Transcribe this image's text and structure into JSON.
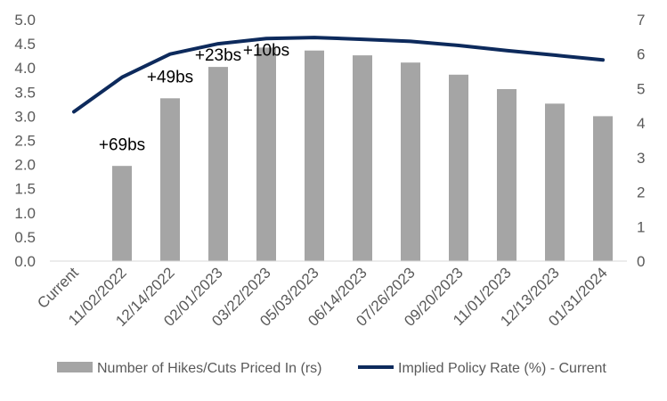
{
  "chart_data": {
    "type": "bar+line",
    "categories": [
      "Current",
      "11/02/2022",
      "12/14/2022",
      "02/01/2023",
      "03/22/2023",
      "05/03/2023",
      "06/14/2023",
      "07/26/2023",
      "09/20/2023",
      "11/01/2023",
      "12/13/2023",
      "01/31/2024"
    ],
    "series": [
      {
        "name": "Number of Hikes/Cuts Priced In (rs)",
        "type": "bar",
        "axis": "left",
        "values": [
          0,
          1.97,
          3.37,
          4.02,
          4.42,
          4.36,
          4.26,
          4.11,
          3.86,
          3.56,
          3.26,
          3.0
        ]
      },
      {
        "name": "Implied Policy Rate (%) - Current",
        "type": "line",
        "axis": "right",
        "values": [
          4.33,
          5.33,
          6.0,
          6.3,
          6.45,
          6.48,
          6.43,
          6.37,
          6.25,
          6.1,
          5.97,
          5.83
        ]
      }
    ],
    "annotations": [
      {
        "text": "+69bs",
        "category": "11/02/2022",
        "value": 2.3
      },
      {
        "text": "+49bs",
        "category": "12/14/2022",
        "value": 3.7
      },
      {
        "text": "+23bs",
        "category": "02/01/2023",
        "value": 4.15
      },
      {
        "text": "+10bs",
        "category": "03/22/2023",
        "value": 4.25
      }
    ],
    "y_left": {
      "min": 0,
      "max": 5,
      "ticks": [
        "0.0",
        "0.5",
        "1.0",
        "1.5",
        "2.0",
        "2.5",
        "3.0",
        "3.5",
        "4.0",
        "4.5",
        "5.0"
      ]
    },
    "y_right": {
      "min": 0,
      "max": 7,
      "ticks": [
        "0",
        "1",
        "2",
        "3",
        "4",
        "5",
        "6",
        "7"
      ]
    },
    "grid": false,
    "legend_position": "bottom",
    "colors": {
      "bar": "#a5a5a5",
      "line": "#0d2a5c",
      "text": "#595959",
      "axis": "#d9d9d9"
    }
  }
}
